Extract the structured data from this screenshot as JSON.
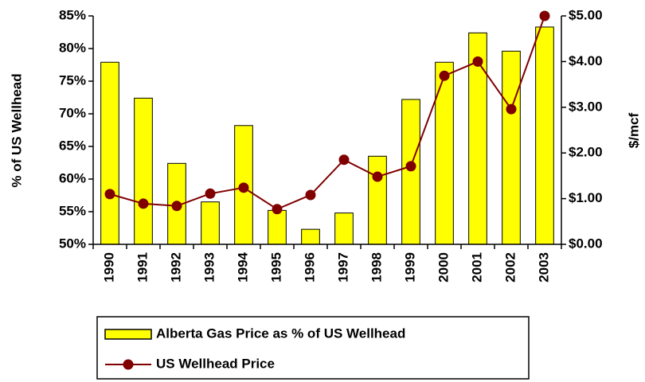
{
  "chart_data": {
    "type": "bar_line",
    "y_label": "% of US Wellhead",
    "y2_label": "$/mcf",
    "categories": [
      "1990",
      "1991",
      "1992",
      "1993",
      "1994",
      "1995",
      "1996",
      "1997",
      "1998",
      "1999",
      "2000",
      "2001",
      "2002",
      "2003"
    ],
    "series": [
      {
        "name": "Alberta Gas Price as % of US Wellhead",
        "type": "bar",
        "axis": "y",
        "color": "#ffff00",
        "values": [
          77.9,
          72.4,
          62.4,
          56.5,
          68.2,
          55.2,
          52.3,
          54.8,
          63.5,
          72.2,
          77.9,
          82.4,
          79.6,
          83.3
        ]
      },
      {
        "name": "US Wellhead Price",
        "type": "line",
        "axis": "y2",
        "color": "#800000",
        "values": [
          1.1,
          0.89,
          0.84,
          1.11,
          1.24,
          0.77,
          1.08,
          1.85,
          1.48,
          1.71,
          3.69,
          4.0,
          2.96,
          5.0
        ]
      }
    ],
    "ylim": [
      50,
      85
    ],
    "yticks": [
      {
        "value": 50,
        "label": "50%"
      },
      {
        "value": 55,
        "label": "55%"
      },
      {
        "value": 60,
        "label": "60%"
      },
      {
        "value": 65,
        "label": "65%"
      },
      {
        "value": 70,
        "label": "70%"
      },
      {
        "value": 75,
        "label": "75%"
      },
      {
        "value": 80,
        "label": "80%"
      },
      {
        "value": 85,
        "label": "85%"
      }
    ],
    "y2lim": [
      0,
      5
    ],
    "y2ticks": [
      {
        "value": 0,
        "label": "$0.00"
      },
      {
        "value": 1,
        "label": "$1.00"
      },
      {
        "value": 2,
        "label": "$2.00"
      },
      {
        "value": 3,
        "label": "$3.00"
      },
      {
        "value": 4,
        "label": "$4.00"
      },
      {
        "value": 5,
        "label": "$5.00"
      }
    ],
    "grid": false,
    "legend": "bottom"
  }
}
